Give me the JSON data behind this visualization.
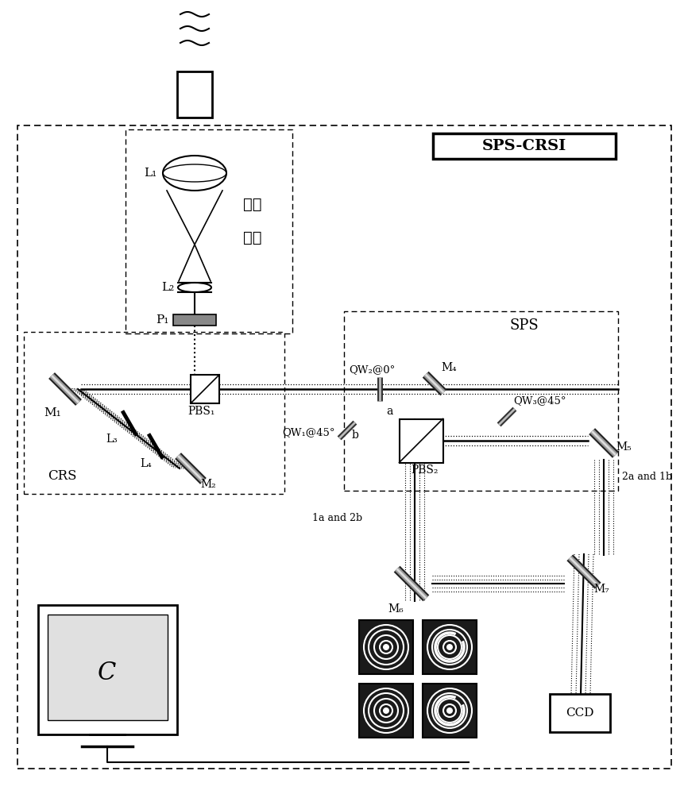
{
  "bg_color": "#ffffff",
  "labels": {
    "SPS_CRSI": "SPS-CRSI",
    "SPS": "SPS",
    "CRS": "CRS",
    "C": "C",
    "CCD": "CCD",
    "L1": "L₁",
    "L2": "L₂",
    "P1": "P₁",
    "PBS1": "PBS₁",
    "PBS2": "PBS₂",
    "M1": "M₁",
    "M2": "M₂",
    "M4": "M₄",
    "M5": "M₅",
    "M6": "M₆",
    "M7": "M₇",
    "QW1": "QW₁@45°",
    "QW2": "QW₂@0°",
    "QW3": "QW₃@45°",
    "L3": "L₃",
    "L4": "L₄",
    "suojin1": "缩束",
    "suojin2": "系统",
    "label_1a2b": "1a and 2b",
    "label_2a1b": "2a and 1b",
    "a_label": "a",
    "b_label": "b"
  }
}
